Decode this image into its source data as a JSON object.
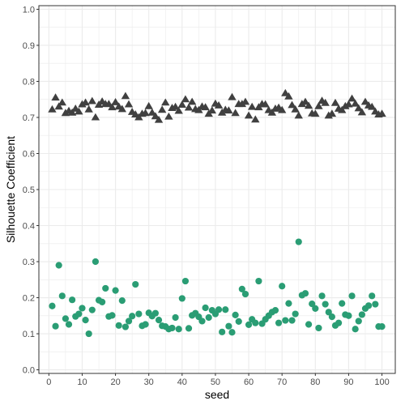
{
  "chart_data": {
    "type": "scatter",
    "xlabel": "seed",
    "ylabel": "Silhouette Coefficient",
    "xlim": [
      -3,
      104
    ],
    "ylim": [
      -0.01,
      1.01
    ],
    "x_ticks": [
      0,
      10,
      20,
      30,
      40,
      50,
      60,
      70,
      80,
      90,
      100
    ],
    "y_ticks": [
      0.0,
      0.1,
      0.2,
      0.3,
      0.4,
      0.5,
      0.6,
      0.7,
      0.8,
      0.9,
      1.0
    ],
    "x_tick_labels": [
      "0",
      "10",
      "20",
      "30",
      "40",
      "50",
      "60",
      "70",
      "80",
      "90",
      "100"
    ],
    "y_tick_labels": [
      "0.0",
      "0.1",
      "0.2",
      "0.3",
      "0.4",
      "0.5",
      "0.6",
      "0.7",
      "0.8",
      "0.9",
      "1.0"
    ],
    "grid": true,
    "legend": "none",
    "colors": {
      "panel_border": "#333333",
      "grid": "#ebebeb",
      "series_triangle": "#404040",
      "series_circle": "#2a9d74"
    },
    "series": [
      {
        "marker": "triangle",
        "color": "#404040",
        "x": [
          1,
          2,
          3,
          4,
          5,
          6,
          7,
          8,
          9,
          10,
          11,
          12,
          13,
          14,
          15,
          16,
          17,
          18,
          19,
          20,
          21,
          22,
          23,
          24,
          25,
          26,
          27,
          28,
          29,
          30,
          31,
          32,
          33,
          34,
          35,
          36,
          37,
          38,
          39,
          40,
          41,
          42,
          43,
          44,
          45,
          46,
          47,
          48,
          49,
          50,
          51,
          52,
          53,
          54,
          55,
          56,
          57,
          58,
          59,
          60,
          61,
          62,
          63,
          64,
          65,
          66,
          67,
          68,
          69,
          70,
          71,
          72,
          73,
          74,
          75,
          76,
          77,
          78,
          79,
          80,
          81,
          82,
          83,
          84,
          85,
          86,
          87,
          88,
          89,
          90,
          91,
          92,
          93,
          94,
          95,
          96,
          97,
          98,
          99,
          100
        ],
        "y": [
          0.722,
          0.755,
          0.73,
          0.741,
          0.712,
          0.718,
          0.713,
          0.724,
          0.716,
          0.736,
          0.741,
          0.722,
          0.745,
          0.7,
          0.735,
          0.744,
          0.737,
          0.737,
          0.728,
          0.742,
          0.73,
          0.723,
          0.759,
          0.736,
          0.715,
          0.708,
          0.7,
          0.71,
          0.712,
          0.731,
          0.713,
          0.703,
          0.693,
          0.721,
          0.741,
          0.702,
          0.726,
          0.729,
          0.718,
          0.735,
          0.75,
          0.727,
          0.743,
          0.723,
          0.72,
          0.73,
          0.728,
          0.71,
          0.719,
          0.738,
          0.733,
          0.713,
          0.721,
          0.719,
          0.756,
          0.712,
          0.737,
          0.737,
          0.743,
          0.705,
          0.729,
          0.694,
          0.728,
          0.737,
          0.736,
          0.72,
          0.713,
          0.724,
          0.727,
          0.72,
          0.767,
          0.758,
          0.734,
          0.722,
          0.705,
          0.737,
          0.743,
          0.732,
          0.711,
          0.71,
          0.731,
          0.746,
          0.74,
          0.705,
          0.71,
          0.74,
          0.724,
          0.72,
          0.731,
          0.736,
          0.752,
          0.738,
          0.725,
          0.714,
          0.743,
          0.733,
          0.729,
          0.716,
          0.708,
          0.71
        ]
      },
      {
        "marker": "circle",
        "color": "#2a9d74",
        "x": [
          1,
          2,
          3,
          4,
          5,
          6,
          7,
          8,
          9,
          10,
          11,
          12,
          13,
          14,
          15,
          16,
          17,
          18,
          19,
          20,
          21,
          22,
          23,
          24,
          25,
          26,
          27,
          28,
          29,
          30,
          31,
          32,
          33,
          34,
          35,
          36,
          37,
          38,
          39,
          40,
          41,
          42,
          43,
          44,
          45,
          46,
          47,
          48,
          49,
          50,
          51,
          52,
          53,
          54,
          55,
          56,
          57,
          58,
          59,
          60,
          61,
          62,
          63,
          64,
          65,
          66,
          67,
          68,
          69,
          70,
          71,
          72,
          73,
          74,
          75,
          76,
          77,
          78,
          79,
          80,
          81,
          82,
          83,
          84,
          85,
          86,
          87,
          88,
          89,
          90,
          91,
          92,
          93,
          94,
          95,
          96,
          97,
          98,
          99,
          100
        ],
        "y": [
          0.177,
          0.121,
          0.29,
          0.205,
          0.142,
          0.126,
          0.194,
          0.148,
          0.155,
          0.171,
          0.138,
          0.1,
          0.166,
          0.3,
          0.193,
          0.188,
          0.226,
          0.148,
          0.151,
          0.22,
          0.123,
          0.192,
          0.119,
          0.135,
          0.149,
          0.237,
          0.155,
          0.122,
          0.126,
          0.158,
          0.149,
          0.157,
          0.138,
          0.122,
          0.12,
          0.113,
          0.116,
          0.145,
          0.113,
          0.198,
          0.246,
          0.115,
          0.151,
          0.157,
          0.147,
          0.135,
          0.172,
          0.145,
          0.165,
          0.155,
          0.167,
          0.105,
          0.167,
          0.121,
          0.104,
          0.152,
          0.134,
          0.224,
          0.21,
          0.125,
          0.14,
          0.13,
          0.246,
          0.128,
          0.14,
          0.15,
          0.16,
          0.165,
          0.13,
          0.232,
          0.137,
          0.184,
          0.137,
          0.155,
          0.355,
          0.207,
          0.212,
          0.126,
          0.183,
          0.17,
          0.116,
          0.205,
          0.182,
          0.16,
          0.147,
          0.123,
          0.13,
          0.184,
          0.153,
          0.15,
          0.205,
          0.113,
          0.135,
          0.153,
          0.17,
          0.178,
          0.205,
          0.182,
          0.12,
          0.12
        ]
      }
    ]
  }
}
